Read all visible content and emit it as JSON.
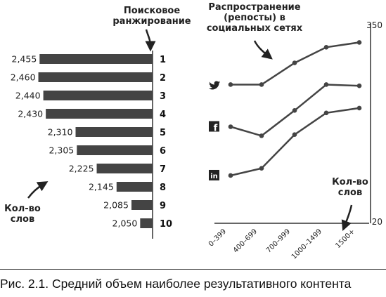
{
  "chart_data": [
    {
      "type": "bar",
      "orientation": "horizontal",
      "categories": [
        "1",
        "2",
        "3",
        "4",
        "5",
        "6",
        "7",
        "8",
        "9",
        "10"
      ],
      "values": [
        2455,
        2460,
        2440,
        2430,
        2310,
        2305,
        2225,
        2145,
        2085,
        2050
      ],
      "value_labels": [
        "2,455",
        "2,460",
        "2,440",
        "2,430",
        "2,310",
        "2,305",
        "2,225",
        "2,145",
        "2,085",
        "2,050"
      ],
      "axis_title": "Поисковое ранжирование",
      "value_title": "Кол-во слов",
      "xlim": [
        2000,
        2470
      ],
      "color": "#444444"
    },
    {
      "type": "line",
      "title": "Распространение (репосты) в социальных сетях",
      "categories": [
        "0–399",
        "400–699",
        "700–999",
        "1000–1499",
        "1500+"
      ],
      "xlabel": "Кол-во слов",
      "ylim": [
        20,
        350
      ],
      "yticks": [
        "350",
        "20"
      ],
      "series": [
        {
          "icon": "twitter-icon",
          "values": [
            248,
            248,
            284,
            310,
            318
          ]
        },
        {
          "icon": "facebook-icon",
          "values": [
            178,
            163,
            205,
            248,
            246
          ]
        },
        {
          "icon": "linkedin-icon",
          "values": [
            97,
            109,
            165,
            201,
            209
          ]
        }
      ],
      "color": "#444444"
    }
  ],
  "caption": {
    "label": "Рис. 2.1.",
    "text": " Средний объем наиболее результативного контента"
  }
}
